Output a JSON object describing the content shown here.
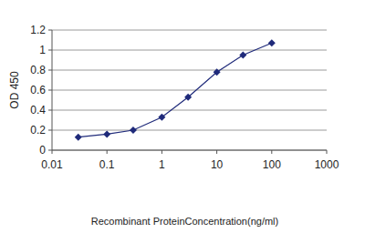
{
  "chart_data": {
    "type": "line",
    "x_label": "Recombinant ProteinConcentration(ng/ml)",
    "y_label": "OD 450",
    "x": [
      0.03,
      0.1,
      0.3,
      1,
      3,
      10,
      30,
      100
    ],
    "values": [
      0.13,
      0.16,
      0.2,
      0.33,
      0.53,
      0.78,
      0.95,
      1.07
    ],
    "color": "#1f2a7a",
    "marker": "diamond",
    "log": "x",
    "grid": true,
    "xlim": [
      0.01,
      1000
    ],
    "xticks": [
      0.01,
      0.1,
      1,
      10,
      100,
      1000
    ],
    "ylim": [
      0,
      1.2
    ],
    "yticks": [
      0,
      0.2,
      0.4,
      0.6,
      0.8,
      1,
      1.2
    ]
  }
}
